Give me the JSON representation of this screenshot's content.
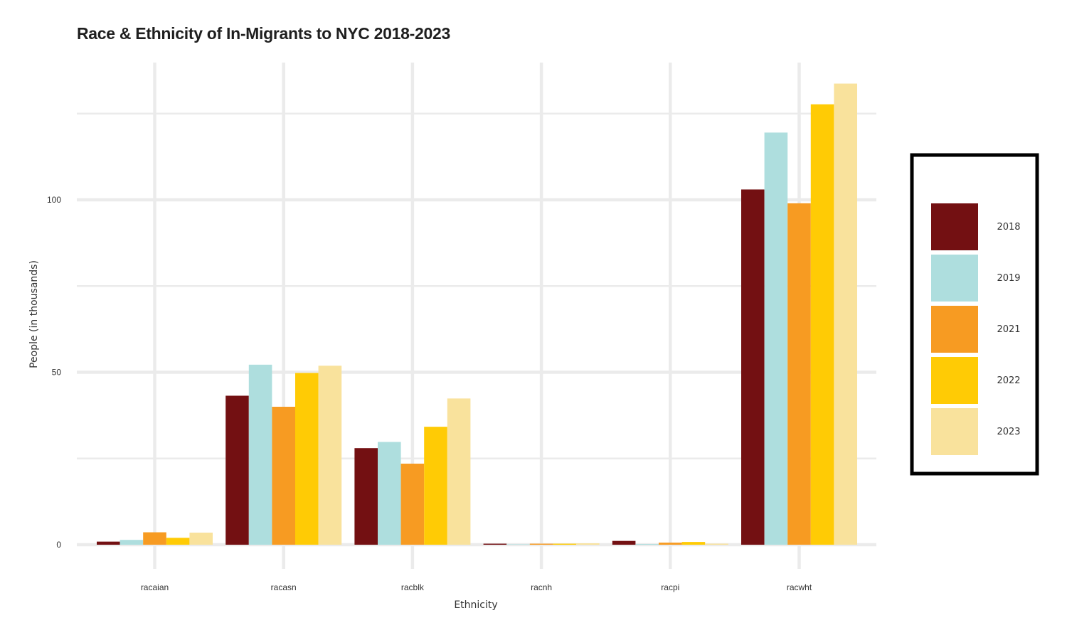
{
  "chart_data": {
    "type": "bar",
    "title": "Race & Ethnicity of In-Migrants to NYC 2018-2023",
    "xlabel": "Ethnicity",
    "ylabel": "People (in thousands)",
    "categories": [
      "racaian",
      "racasn",
      "racblk",
      "racnh",
      "racpi",
      "racwht"
    ],
    "y_ticks": [
      0,
      50,
      100
    ],
    "ylim": [
      -3,
      140
    ],
    "grid": true,
    "legend_position": "right",
    "series": [
      {
        "name": "2018",
        "color": "#731012",
        "values": [
          0.9,
          43.2,
          28.0,
          0.3,
          1.1,
          103.0
        ]
      },
      {
        "name": "2019",
        "color": "#AEDEDE",
        "values": [
          1.4,
          52.2,
          29.8,
          0.1,
          0.2,
          119.5
        ]
      },
      {
        "name": "2021",
        "color": "#F79B22",
        "values": [
          3.6,
          40.0,
          23.5,
          0.3,
          0.6,
          99.0
        ]
      },
      {
        "name": "2022",
        "color": "#FFCB05",
        "values": [
          2.0,
          49.8,
          34.2,
          0.3,
          0.8,
          127.7
        ]
      },
      {
        "name": "2023",
        "color": "#F9E29C",
        "values": [
          3.5,
          51.9,
          42.4,
          0.4,
          0.3,
          133.7
        ]
      }
    ]
  }
}
